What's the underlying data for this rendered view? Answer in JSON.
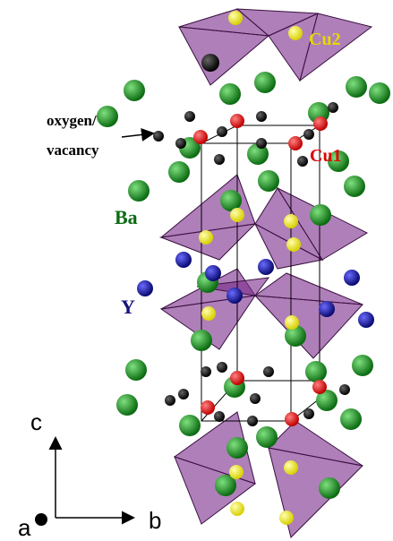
{
  "labels": {
    "cu2": "Cu2",
    "cu1": "Cu1",
    "oxygen_vacancy": [
      "oxygen/",
      "vacancy"
    ],
    "ba": "Ba",
    "y": "Y"
  },
  "axes": {
    "c": "c",
    "b": "b",
    "a": "a"
  }
}
